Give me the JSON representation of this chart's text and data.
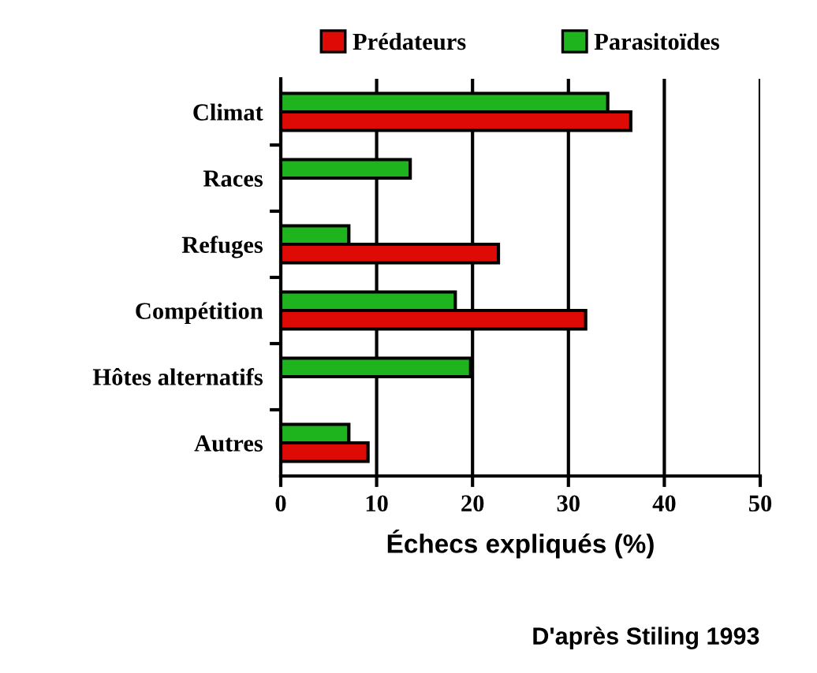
{
  "chart_data": {
    "type": "bar",
    "orientation": "horizontal",
    "xlabel": "Échecs expliqués (%)",
    "categories": [
      "Climat",
      "Races",
      "Refuges",
      "Compétition",
      "Hôtes alternatifs",
      "Autres"
    ],
    "series": [
      {
        "name": "Prédateurs",
        "color": "#dd0a06",
        "values": [
          36.5,
          null,
          22.7,
          31.8,
          null,
          9.1
        ]
      },
      {
        "name": "Parasitoïdes",
        "color": "#1eb41e",
        "values": [
          34.1,
          13.5,
          7.1,
          18.2,
          19.8,
          7.1
        ]
      }
    ],
    "xlim": [
      0,
      50
    ],
    "xticks": [
      0,
      10,
      20,
      30,
      40,
      50
    ],
    "grid": "x",
    "legend": "top",
    "annotations": [
      "D'après Stiling 1993"
    ]
  }
}
